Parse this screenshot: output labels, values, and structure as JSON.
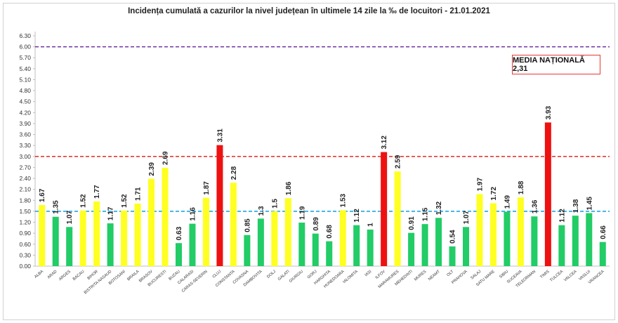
{
  "chart_data": {
    "type": "bar",
    "title": "Incidența cumulată a cazurilor la nivel județean în ultimele 14 zile la ‰ de locuitori - 21.01.2021",
    "xlabel": "",
    "ylabel": "",
    "ylim": [
      0,
      6.3
    ],
    "yticks": [
      "0.00",
      "0.30",
      "0.60",
      "0.90",
      "1.20",
      "1.50",
      "1.80",
      "2.10",
      "2.40",
      "2.70",
      "3.00",
      "3.30",
      "3.60",
      "3.90",
      "4.20",
      "4.50",
      "4.80",
      "5.10",
      "5.40",
      "5.70",
      "6.00",
      "6.30"
    ],
    "grid": false,
    "reference_lines": [
      {
        "name": "threshold-6",
        "value": 6.0,
        "color": "#7030a0"
      },
      {
        "name": "threshold-3",
        "value": 3.0,
        "color": "#e53935"
      },
      {
        "name": "threshold-1-5",
        "value": 1.5,
        "color": "#1ea7e0"
      }
    ],
    "annotation": "MEDIA NAȚIONALĂ 2,31",
    "colors": {
      "green": "#22cc66",
      "yellow": "#ffff22",
      "red": "#ee1111"
    },
    "categories": [
      "ALBA",
      "ARAD",
      "ARGES",
      "BACAU",
      "BIHOR",
      "BISTRITA NASAUD",
      "BOTOSANI",
      "BRAILA",
      "BRASOV",
      "BUCURESTI",
      "BUZAU",
      "CALARASI",
      "CARAS-SEVERIN",
      "CLUJ",
      "CONSTANTA",
      "COVASNA",
      "DAMBOVITA",
      "DOLJ",
      "GALATI",
      "GIURGIU",
      "GORJ",
      "HARGHITA",
      "HUNEDOARA",
      "IALOMITA",
      "IASI",
      "ILFOV",
      "MARAMURES",
      "MEHEDINTI",
      "MURES",
      "NEAMT",
      "OLT",
      "PRAHOVA",
      "SALAJ",
      "SATU MARE",
      "SIBIU",
      "SUCEAVA",
      "TELEORMAN",
      "TIMIS",
      "TULCEA",
      "VALCEA",
      "VASLUI",
      "VRANCEA"
    ],
    "values": [
      1.67,
      1.35,
      1.07,
      1.52,
      1.77,
      1.17,
      1.52,
      1.71,
      2.39,
      2.69,
      0.63,
      1.16,
      1.87,
      3.31,
      2.28,
      0.85,
      1.3,
      1.5,
      1.86,
      1.19,
      0.89,
      0.68,
      1.53,
      1.12,
      1,
      3.12,
      2.59,
      0.91,
      1.15,
      1.32,
      0.54,
      1.07,
      1.97,
      1.72,
      1.49,
      1.88,
      1.36,
      3.93,
      1.12,
      1.38,
      1.45,
      0.66
    ],
    "value_labels": [
      "1.67",
      "1.35",
      "1.07",
      "1.52",
      "1.77",
      "1.17",
      "1.52",
      "1.71",
      "2.39",
      "2.69",
      "0.63",
      "1.16",
      "1.87",
      "3.31",
      "2.28",
      "0.85",
      "1.3",
      "1.5",
      "1.86",
      "1.19",
      "0.89",
      "0.68",
      "1.53",
      "1.12",
      "1",
      "3.12",
      "2.59",
      "0.91",
      "1.15",
      "1.32",
      "0.54",
      "1.07",
      "1.97",
      "1.72",
      "1.49",
      "1.88",
      "1.36",
      "3.93",
      "1.12",
      "1.38",
      "1.45",
      "0.66"
    ],
    "bar_colors": [
      "yellow",
      "green",
      "green",
      "yellow",
      "yellow",
      "green",
      "yellow",
      "yellow",
      "yellow",
      "yellow",
      "green",
      "green",
      "yellow",
      "red",
      "yellow",
      "green",
      "green",
      "yellow",
      "yellow",
      "green",
      "green",
      "green",
      "yellow",
      "green",
      "green",
      "red",
      "yellow",
      "green",
      "green",
      "green",
      "green",
      "green",
      "yellow",
      "yellow",
      "green",
      "yellow",
      "green",
      "red",
      "green",
      "green",
      "green",
      "green"
    ]
  }
}
